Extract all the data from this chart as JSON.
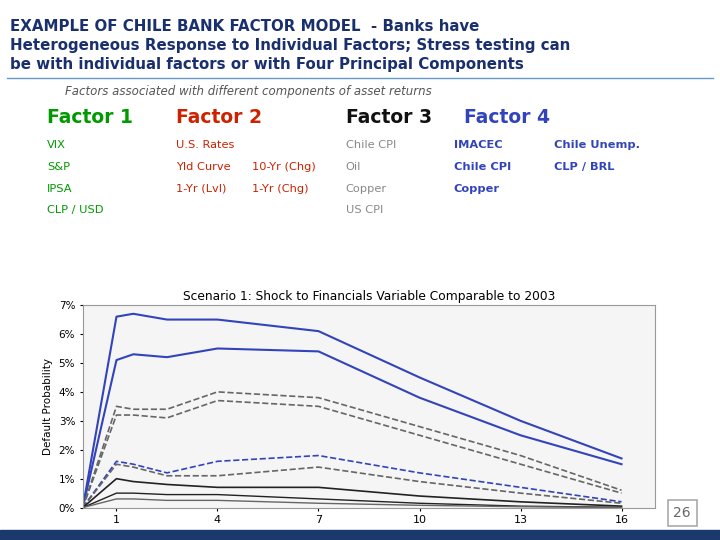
{
  "title_line1": "EXAMPLE OF CHILE BANK FACTOR MODEL  - Banks have",
  "title_line2": "Heterogeneous Response to Individual Factors; Stress testing can",
  "title_line3": "be with individual factors or with Four Principal Components",
  "subtitle": "Factors associated with different components of asset returns",
  "title_color": "#1a2f6e",
  "subtitle_color": "#555555",
  "bg_color": "#ffffff",
  "sep_color": "#6699cc",
  "bottom_bar_color": "#1a3a6e",
  "factor1_label": "Factor 1",
  "factor1_color": "#009900",
  "factor2_label": "Factor 2",
  "factor2_color": "#cc2200",
  "factor3_label": "Factor 3",
  "factor3_color": "#111111",
  "factor4_label": "Factor 4",
  "factor4_color": "#3344bb",
  "factor1_items": [
    "VIX",
    "S&P",
    "IPSA",
    "CLP / USD"
  ],
  "factor2_header": "U.S. Rates",
  "factor2_col1": [
    "Yld Curve",
    "1-Yr (Lvl)"
  ],
  "factor2_col2": [
    "10-Yr (Chg)",
    "1-Yr (Chg)"
  ],
  "factor3_items": [
    "Chile CPI",
    "Oil",
    "Copper",
    "US CPI"
  ],
  "factor3_color_items": "#888888",
  "factor4_col1": [
    "IMACEC",
    "Chile CPI",
    "Copper"
  ],
  "factor4_col2": [
    "Chile Unemp.",
    "CLP / BRL"
  ],
  "chart_title": "Scenario 1: Shock to Financials Variable Comparable to 2003",
  "x_ticks": [
    1,
    4,
    7,
    10,
    13,
    16
  ],
  "ylabel": "Default Probability",
  "ytick_labels": [
    "0%",
    "1%",
    "2%",
    "3%",
    "4%",
    "5%",
    "6%",
    "7%"
  ],
  "ytick_vals": [
    0,
    1,
    2,
    3,
    4,
    5,
    6,
    7
  ],
  "page_number": "26",
  "lines": [
    {
      "x": [
        0,
        1,
        1.5,
        2.5,
        4,
        7,
        10,
        13,
        16
      ],
      "y": [
        0,
        6.6,
        6.7,
        6.5,
        6.5,
        6.1,
        4.5,
        3.0,
        1.7
      ],
      "color": "#3344bb",
      "lw": 1.5,
      "ls": "solid"
    },
    {
      "x": [
        0,
        1,
        1.5,
        2.5,
        4,
        7,
        10,
        13,
        16
      ],
      "y": [
        0,
        5.1,
        5.3,
        5.2,
        5.5,
        5.4,
        3.8,
        2.5,
        1.5
      ],
      "color": "#3344bb",
      "lw": 1.5,
      "ls": "solid"
    },
    {
      "x": [
        0,
        1,
        1.5,
        2.5,
        4,
        7,
        10,
        13,
        16
      ],
      "y": [
        0,
        3.5,
        3.4,
        3.4,
        4.0,
        3.8,
        2.8,
        1.8,
        0.6
      ],
      "color": "#666666",
      "lw": 1.2,
      "ls": "dashed"
    },
    {
      "x": [
        0,
        1,
        1.5,
        2.5,
        4,
        7,
        10,
        13,
        16
      ],
      "y": [
        0,
        3.2,
        3.2,
        3.1,
        3.7,
        3.5,
        2.5,
        1.5,
        0.5
      ],
      "color": "#666666",
      "lw": 1.2,
      "ls": "dashed"
    },
    {
      "x": [
        0,
        1,
        1.5,
        2.5,
        4,
        7,
        10,
        13,
        16
      ],
      "y": [
        0,
        1.6,
        1.5,
        1.2,
        1.6,
        1.8,
        1.2,
        0.7,
        0.2
      ],
      "color": "#3344bb",
      "lw": 1.2,
      "ls": "dashed"
    },
    {
      "x": [
        0,
        1,
        1.5,
        2.5,
        4,
        7,
        10,
        13,
        16
      ],
      "y": [
        0,
        1.5,
        1.4,
        1.1,
        1.1,
        1.4,
        0.9,
        0.5,
        0.15
      ],
      "color": "#666666",
      "lw": 1.2,
      "ls": "dashed"
    },
    {
      "x": [
        0,
        1,
        1.5,
        2.5,
        4,
        7,
        10,
        13,
        16
      ],
      "y": [
        0,
        1.0,
        0.9,
        0.8,
        0.7,
        0.7,
        0.4,
        0.2,
        0.05
      ],
      "color": "#222222",
      "lw": 1.2,
      "ls": "solid"
    },
    {
      "x": [
        0,
        1,
        1.5,
        2.5,
        4,
        7,
        10,
        13,
        16
      ],
      "y": [
        0,
        0.5,
        0.5,
        0.45,
        0.45,
        0.3,
        0.15,
        0.05,
        0.01
      ],
      "color": "#222222",
      "lw": 1.0,
      "ls": "solid"
    },
    {
      "x": [
        0,
        1,
        1.5,
        2.5,
        4,
        7,
        10,
        13,
        16
      ],
      "y": [
        0,
        0.3,
        0.3,
        0.25,
        0.25,
        0.15,
        0.08,
        0.03,
        0.005
      ],
      "color": "#666666",
      "lw": 1.0,
      "ls": "solid"
    }
  ]
}
